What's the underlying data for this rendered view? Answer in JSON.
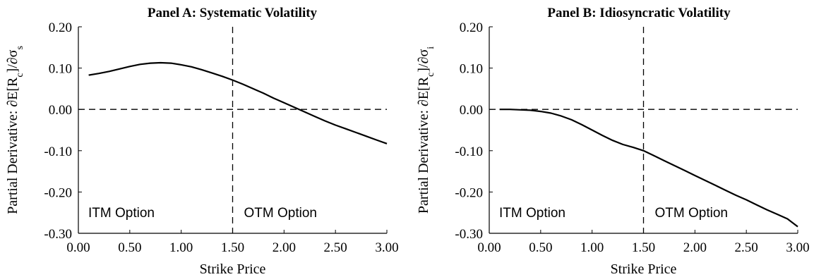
{
  "chart_data": [
    {
      "type": "line",
      "title": "Panel A: Systematic Volatility",
      "xlabel": "Strike Price",
      "ylabel": "Partial Derivative: ∂E[R_c]/∂σ_s",
      "ylabel_parts": {
        "prefix": "Partial Derivative: ∂E[R",
        "sub1": "c",
        "mid": "]/∂σ",
        "sub2": "s"
      },
      "xlim": [
        0,
        3
      ],
      "ylim": [
        -0.3,
        0.2
      ],
      "xticks": [
        "0.00",
        "0.50",
        "1.00",
        "1.50",
        "2.00",
        "2.50",
        "3.00"
      ],
      "yticks": [
        "0.20",
        "0.10",
        "0.00",
        "-0.10",
        "-0.20",
        "-0.30"
      ],
      "xtick_values": [
        0,
        0.5,
        1,
        1.5,
        2,
        2.5,
        3
      ],
      "ytick_values": [
        0.2,
        0.1,
        0,
        -0.1,
        -0.2,
        -0.3
      ],
      "annotations": {
        "left": "ITM Option",
        "right": "OTM Option"
      },
      "reference_lines": {
        "vertical_x": 1.5,
        "horizontal_y": 0
      },
      "grid": false,
      "series": [
        {
          "x": [
            0.1,
            0.2,
            0.3,
            0.4,
            0.5,
            0.6,
            0.7,
            0.8,
            0.9,
            1.0,
            1.1,
            1.2,
            1.3,
            1.4,
            1.5,
            1.6,
            1.7,
            1.8,
            1.9,
            2.0,
            2.1,
            2.2,
            2.3,
            2.4,
            2.5,
            2.6,
            2.7,
            2.8,
            2.9,
            3.0
          ],
          "values": [
            0.083,
            0.087,
            0.092,
            0.098,
            0.104,
            0.109,
            0.112,
            0.113,
            0.112,
            0.108,
            0.103,
            0.096,
            0.088,
            0.08,
            0.071,
            0.061,
            0.05,
            0.039,
            0.027,
            0.016,
            0.005,
            -0.006,
            -0.017,
            -0.028,
            -0.038,
            -0.047,
            -0.056,
            -0.065,
            -0.074,
            -0.083
          ]
        }
      ]
    },
    {
      "type": "line",
      "title": "Panel B: Idiosyncratic Volatility",
      "xlabel": "Strike Price",
      "ylabel": "Partial Derivative: ∂E[R_c]/∂σ_i",
      "ylabel_parts": {
        "prefix": "Partial Derivative: ∂E[R",
        "sub1": "c",
        "mid": "]/∂σ",
        "sub2": "i"
      },
      "xlim": [
        0,
        3
      ],
      "ylim": [
        -0.3,
        0.2
      ],
      "xticks": [
        "0.00",
        "0.50",
        "1.00",
        "1.50",
        "2.00",
        "2.50",
        "3.00"
      ],
      "yticks": [
        "0.20",
        "0.10",
        "0.00",
        "-0.10",
        "-0.20",
        "-0.30"
      ],
      "xtick_values": [
        0,
        0.5,
        1,
        1.5,
        2,
        2.5,
        3
      ],
      "ytick_values": [
        0.2,
        0.1,
        0,
        -0.1,
        -0.2,
        -0.3
      ],
      "annotations": {
        "left": "ITM Option",
        "right": "OTM Option"
      },
      "reference_lines": {
        "vertical_x": 1.5,
        "horizontal_y": 0
      },
      "grid": false,
      "series": [
        {
          "x": [
            0.1,
            0.2,
            0.3,
            0.4,
            0.5,
            0.6,
            0.7,
            0.8,
            0.9,
            1.0,
            1.1,
            1.2,
            1.3,
            1.4,
            1.5,
            1.6,
            1.7,
            1.8,
            1.9,
            2.0,
            2.1,
            2.2,
            2.3,
            2.4,
            2.5,
            2.6,
            2.7,
            2.8,
            2.9,
            3.0
          ],
          "values": [
            0.0,
            0.0,
            -0.001,
            -0.002,
            -0.005,
            -0.009,
            -0.016,
            -0.025,
            -0.037,
            -0.05,
            -0.063,
            -0.075,
            -0.085,
            -0.092,
            -0.1,
            -0.112,
            -0.124,
            -0.136,
            -0.148,
            -0.16,
            -0.172,
            -0.184,
            -0.196,
            -0.208,
            -0.219,
            -0.231,
            -0.243,
            -0.254,
            -0.265,
            -0.284
          ]
        }
      ]
    }
  ]
}
